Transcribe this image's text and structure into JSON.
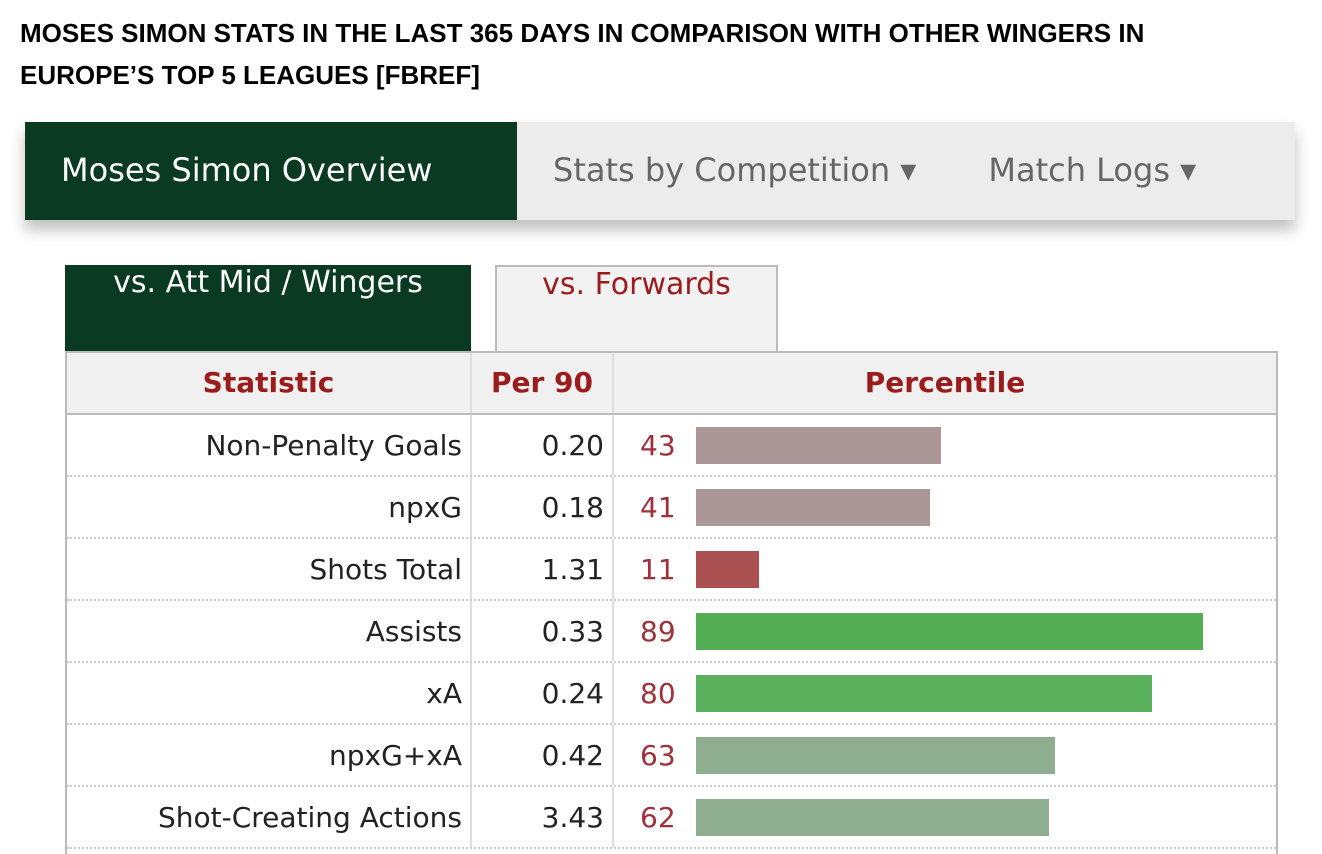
{
  "header": {
    "title": "MOSES SIMON STATS IN THE LAST 365 DAYS IN COMPARISON WITH OTHER WINGERS IN EUROPE’S TOP 5 LEAGUES [FBREF]"
  },
  "nav": {
    "tabs": [
      "Moses Simon Overview",
      "Stats by Competition ▾",
      "Match Logs ▾"
    ]
  },
  "subtabs": [
    "vs. Att Mid / Wingers",
    "vs. Forwards"
  ],
  "table": {
    "columns": [
      "Statistic",
      "Per 90",
      "Percentile"
    ],
    "rows": [
      {
        "statistic": "Non-Penalty Goals",
        "per90": "0.20",
        "percentile": 43,
        "color": "#ab9797"
      },
      {
        "statistic": "npxG",
        "per90": "0.18",
        "percentile": 41,
        "color": "#ab9797"
      },
      {
        "statistic": "Shots Total",
        "per90": "1.31",
        "percentile": 11,
        "color": "#ab5050"
      },
      {
        "statistic": "Assists",
        "per90": "0.33",
        "percentile": 89,
        "color": "#53ad53"
      },
      {
        "statistic": "xA",
        "per90": "0.24",
        "percentile": 80,
        "color": "#5bb15b"
      },
      {
        "statistic": "npxG+xA",
        "per90": "0.42",
        "percentile": 63,
        "color": "#8fae8f"
      },
      {
        "statistic": "Shot-Creating Actions",
        "per90": "3.43",
        "percentile": 62,
        "color": "#8fae8f"
      }
    ]
  }
}
